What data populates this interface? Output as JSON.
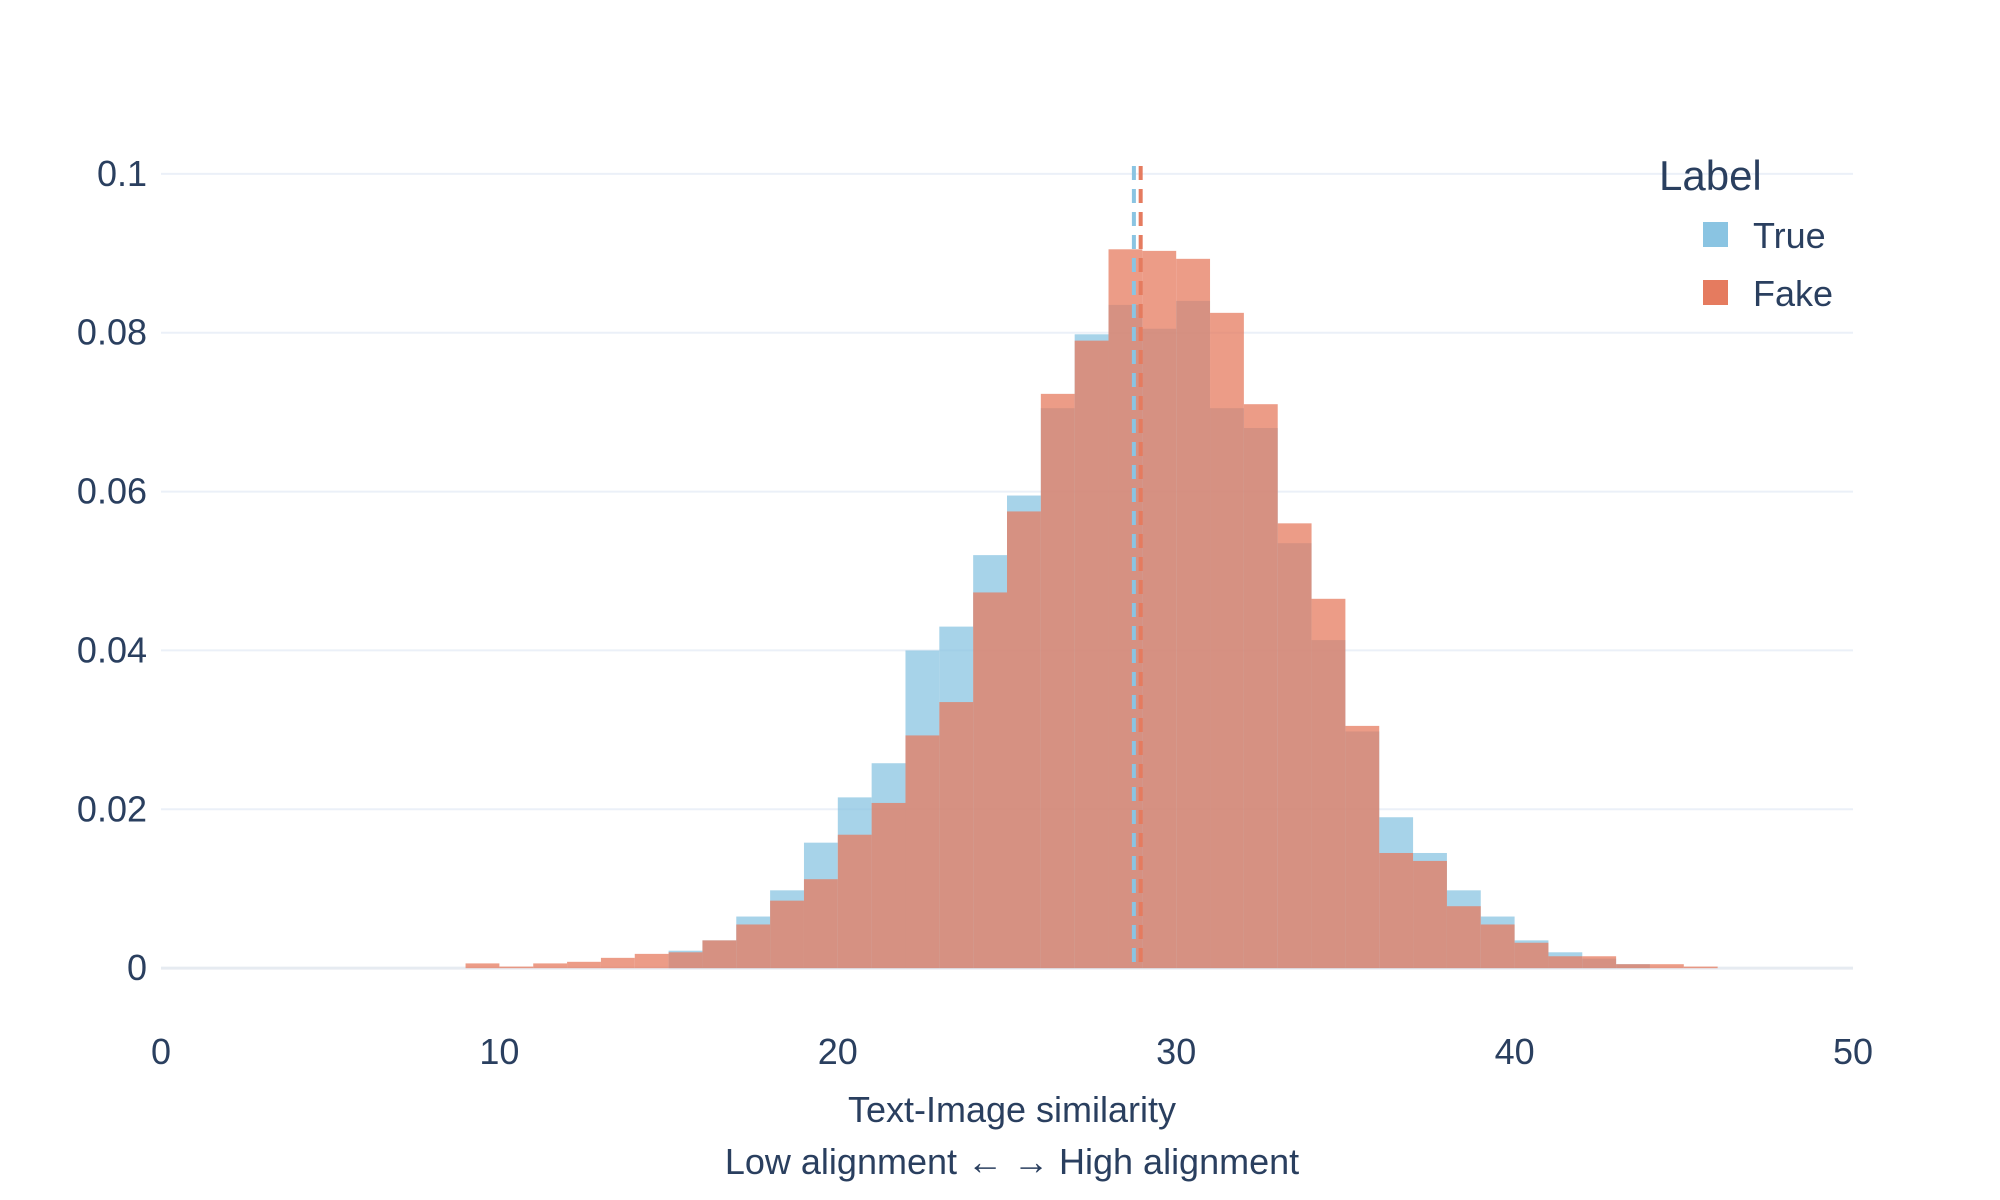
{
  "chart_data": {
    "type": "bar",
    "subtype": "overlaid-histogram",
    "xlabel": "Text-Image similarity",
    "xlabel_line2": "Low alignment ←   → High alignment",
    "ylabel": "",
    "xlim": [
      0,
      50
    ],
    "ylim": [
      -0.003,
      0.103
    ],
    "x_ticks": [
      {
        "value": 0,
        "label": "0"
      },
      {
        "value": 10,
        "label": "10"
      },
      {
        "value": 20,
        "label": "20"
      },
      {
        "value": 30,
        "label": "30"
      },
      {
        "value": 40,
        "label": "40"
      },
      {
        "value": 50,
        "label": "50"
      }
    ],
    "y_ticks": [
      {
        "value": 0,
        "label": "0"
      },
      {
        "value": 0.02,
        "label": "0.02"
      },
      {
        "value": 0.04,
        "label": "0.04"
      },
      {
        "value": 0.06,
        "label": "0.06"
      },
      {
        "value": 0.08,
        "label": "0.08"
      },
      {
        "value": 0.1,
        "label": "0.1"
      }
    ],
    "grid": true,
    "legend": {
      "title": "Label",
      "placement": "top-right"
    },
    "bin_width": 1,
    "series": [
      {
        "name": "True",
        "color": "#8ac4e2",
        "mean": 28.75,
        "bins": [
          [
            15,
            0.0022
          ],
          [
            16,
            0.0035
          ],
          [
            17,
            0.0065
          ],
          [
            18,
            0.0098
          ],
          [
            19,
            0.0158
          ],
          [
            20,
            0.0215
          ],
          [
            21,
            0.0258
          ],
          [
            22,
            0.04
          ],
          [
            23,
            0.043
          ],
          [
            24,
            0.052
          ],
          [
            25,
            0.0595
          ],
          [
            26,
            0.0705
          ],
          [
            27,
            0.0798
          ],
          [
            28,
            0.0835
          ],
          [
            29,
            0.0805
          ],
          [
            30,
            0.084
          ],
          [
            31,
            0.0705
          ],
          [
            32,
            0.068
          ],
          [
            33,
            0.0535
          ],
          [
            34,
            0.0413
          ],
          [
            35,
            0.0298
          ],
          [
            36,
            0.019
          ],
          [
            37,
            0.0145
          ],
          [
            38,
            0.0098
          ],
          [
            39,
            0.0065
          ],
          [
            40,
            0.0035
          ],
          [
            41,
            0.002
          ],
          [
            42,
            0.0012
          ],
          [
            43,
            0.0005
          ]
        ]
      },
      {
        "name": "Fake",
        "color": "#e57b5f",
        "mean": 28.95,
        "bins": [
          [
            9,
            0.0006
          ],
          [
            10,
            0.0002
          ],
          [
            11,
            0.0006
          ],
          [
            12,
            0.0008
          ],
          [
            13,
            0.0013
          ],
          [
            14,
            0.0018
          ],
          [
            15,
            0.002
          ],
          [
            16,
            0.0035
          ],
          [
            17,
            0.0055
          ],
          [
            18,
            0.0085
          ],
          [
            19,
            0.0112
          ],
          [
            20,
            0.0168
          ],
          [
            21,
            0.0208
          ],
          [
            22,
            0.0293
          ],
          [
            23,
            0.0335
          ],
          [
            24,
            0.0473
          ],
          [
            25,
            0.0575
          ],
          [
            26,
            0.0723
          ],
          [
            27,
            0.079
          ],
          [
            28,
            0.0905
          ],
          [
            29,
            0.0903
          ],
          [
            30,
            0.0893
          ],
          [
            31,
            0.0825
          ],
          [
            32,
            0.071
          ],
          [
            33,
            0.056
          ],
          [
            34,
            0.0465
          ],
          [
            35,
            0.0305
          ],
          [
            36,
            0.0145
          ],
          [
            37,
            0.0135
          ],
          [
            38,
            0.0078
          ],
          [
            39,
            0.0055
          ],
          [
            40,
            0.0032
          ],
          [
            41,
            0.0015
          ],
          [
            42,
            0.0015
          ],
          [
            43,
            0.0005
          ],
          [
            44,
            0.0005
          ],
          [
            45,
            0.0002
          ]
        ]
      }
    ]
  }
}
